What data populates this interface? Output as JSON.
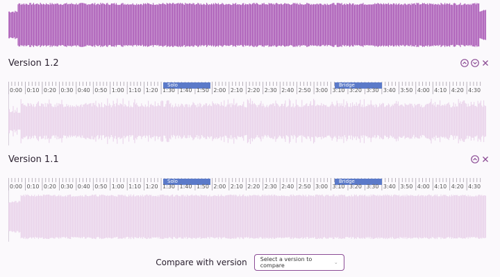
{
  "colors": {
    "wave_active": "#a855b5",
    "wave_faded": "#e9d2ea",
    "region": "#5b7ac9",
    "accent": "#8a4a94"
  },
  "versions": [
    {
      "title": "Version 1.2",
      "controls": {
        "collapse_icon": "chevron-up-icon",
        "expand_icon": "chevron-down-icon",
        "close_icon": "close-icon"
      },
      "regions": [
        {
          "label": "Solo"
        },
        {
          "label": "Bridge"
        }
      ]
    },
    {
      "title": "Version 1.1",
      "controls": {
        "collapse_icon": "chevron-up-icon",
        "close_icon": "close-icon"
      },
      "regions": [
        {
          "label": "Solo"
        },
        {
          "label": "Bridge"
        }
      ]
    }
  ],
  "timeline_labels": [
    "0:00",
    "0:10",
    "0:20",
    "0:30",
    "0:40",
    "0:50",
    "1:00",
    "1:10",
    "1:20",
    "1:30",
    "1:40",
    "1:50",
    "2:00",
    "2:10",
    "2:20",
    "2:30",
    "2:40",
    "2:50",
    "3:00",
    "3:10",
    "3:20",
    "3:30",
    "3:40",
    "3:50",
    "4:00",
    "4:10",
    "4:20",
    "4:30"
  ],
  "compare": {
    "label": "Compare with version",
    "select_placeholder": "Select a version to compare"
  }
}
